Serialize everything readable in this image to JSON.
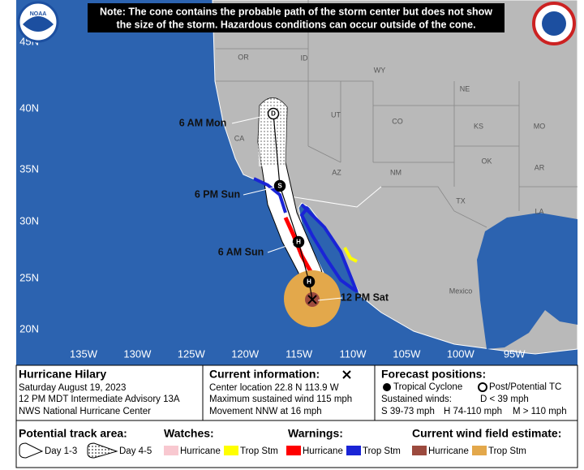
{
  "note": [
    "Note: The cone contains the probable path of the storm center but does not show",
    "the size of the storm. Hazardous conditions can occur outside of the cone."
  ],
  "logo": "NOAA",
  "lat_labels": [
    "45N",
    "40N",
    "35N",
    "30N",
    "25N",
    "20N"
  ],
  "lon_labels": [
    "135W",
    "130W",
    "125W",
    "120W",
    "115W",
    "110W",
    "105W",
    "100W",
    "95W"
  ],
  "regions": [
    "OR",
    "ID",
    "WY",
    "NE",
    "UT",
    "CO",
    "KS",
    "MO",
    "CA",
    "AZ",
    "NM",
    "OK",
    "AR",
    "TX",
    "LA",
    "Mexico"
  ],
  "forecast_points": [
    {
      "marker": "D",
      "label": "6 AM Mon"
    },
    {
      "marker": "S",
      "label": "6 PM Sun"
    },
    {
      "marker": "H",
      "label": "6 AM Sun"
    },
    {
      "marker": "H"
    }
  ],
  "current_label": "12 PM Sat",
  "storm": {
    "name": "Hurricane Hilary",
    "date": "Saturday August 19, 2023",
    "advisory": "12 PM MDT Intermediate Advisory 13A",
    "center": "NWS National Hurricane Center"
  },
  "current": {
    "title": "Current information:",
    "lines": [
      "Center location 22.8 N 113.9 W",
      "Maximum sustained wind 115 mph",
      "Movement NNW at 16 mph"
    ]
  },
  "forecast": {
    "title": "Forecast positions:",
    "tropical": "Tropical Cyclone",
    "post": "Post/Potential TC",
    "winds": "Sustained winds:",
    "d": "D < 39 mph",
    "s": "S 39-73 mph",
    "h": "H 74-110 mph",
    "m": "M > 110 mph"
  },
  "legend": {
    "track_title": "Potential track area:",
    "day13": "Day 1-3",
    "day45": "Day 4-5",
    "watches_title": "Watches:",
    "warnings_title": "Warnings:",
    "wind_title": "Current wind field estimate:",
    "watch_hurricane": "Hurricane",
    "watch_trop": "Trop Stm",
    "warn_hurricane": "Hurricane",
    "warn_trop": "Trop Stm",
    "wind_hurricane": "Hurricane",
    "wind_trop": "Trop Stm"
  }
}
